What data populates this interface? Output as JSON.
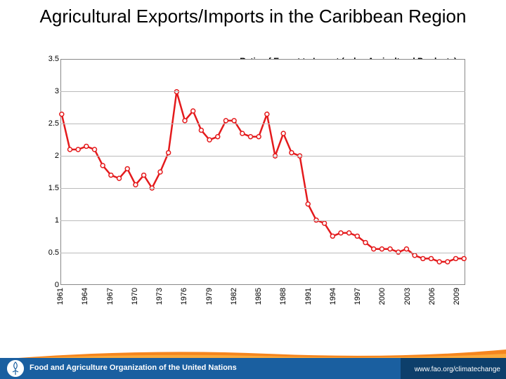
{
  "slide": {
    "title": "Agricultural Exports/Imports in the Caribbean Region"
  },
  "chart": {
    "type": "line",
    "title": "Ratio of Export to Import (value Agricultural Products)",
    "title_fontsize": 12,
    "title_fontweight": "bold",
    "ylim": [
      0,
      3.5
    ],
    "ytick_step": 0.5,
    "yticks": [
      0,
      0.5,
      1,
      1.5,
      2,
      2.5,
      3,
      3.5
    ],
    "xlim": [
      1961,
      2010
    ],
    "xticks": [
      1961,
      1964,
      1967,
      1970,
      1973,
      1976,
      1979,
      1982,
      1985,
      1988,
      1991,
      1994,
      1997,
      2000,
      2003,
      2006,
      2009
    ],
    "line_color": "#e41a1c",
    "line_width": 2.5,
    "marker_style": "circle",
    "marker_size": 6,
    "marker_face": "#ffffff",
    "marker_edge": "#e41a1c",
    "grid_color": "#bbbbbb",
    "border_color": "#888888",
    "background_color": "#ffffff",
    "years": [
      1961,
      1962,
      1963,
      1964,
      1965,
      1966,
      1967,
      1968,
      1969,
      1970,
      1971,
      1972,
      1973,
      1974,
      1975,
      1976,
      1977,
      1978,
      1979,
      1980,
      1981,
      1982,
      1983,
      1984,
      1985,
      1986,
      1987,
      1988,
      1989,
      1990,
      1991,
      1992,
      1993,
      1994,
      1995,
      1996,
      1997,
      1998,
      1999,
      2000,
      2001,
      2002,
      2003,
      2004,
      2005,
      2006,
      2007,
      2008,
      2009,
      2010
    ],
    "values": [
      2.65,
      2.1,
      2.1,
      2.15,
      2.1,
      1.85,
      1.7,
      1.65,
      1.8,
      1.55,
      1.7,
      1.5,
      1.75,
      2.05,
      3.0,
      2.55,
      2.7,
      2.4,
      2.25,
      2.3,
      2.55,
      2.55,
      2.35,
      2.3,
      2.3,
      2.65,
      2.0,
      2.35,
      2.05,
      2.0,
      1.25,
      1.0,
      0.95,
      0.75,
      0.8,
      0.8,
      0.75,
      0.65,
      0.55,
      0.55,
      0.55,
      0.5,
      0.55,
      0.45,
      0.4,
      0.4,
      0.35,
      0.35,
      0.4,
      0.4
    ]
  },
  "footer": {
    "org": "Food and Agriculture Organization of the United Nations",
    "url": "www.fao.org/climatechange",
    "band_color": "#1a5fa0",
    "url_bg_color": "#0d3f6b",
    "orange_color": "#f5861f",
    "orange_light": "#fbb040"
  }
}
